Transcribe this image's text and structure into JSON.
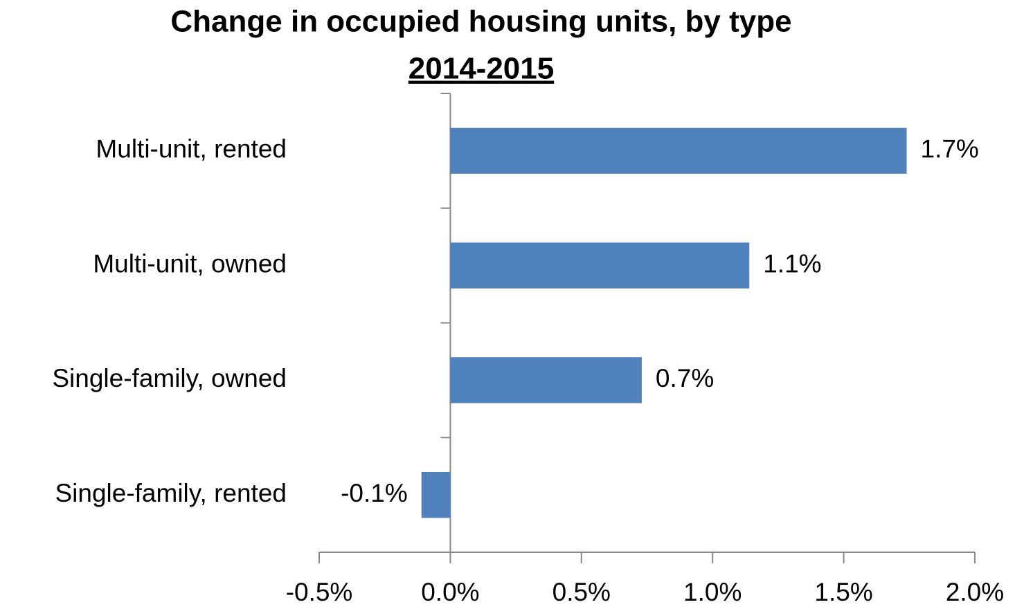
{
  "chart_data": {
    "type": "barh",
    "title": "Change in occupied housing units, by type",
    "subtitle": "2014-2015",
    "categories": [
      "Multi-unit, rented",
      "Multi-unit, owned",
      "Single-family, owned",
      "Single-family, rented"
    ],
    "values": [
      1.74,
      1.14,
      0.73,
      -0.11
    ],
    "value_labels": [
      "1.7%",
      "1.1%",
      "0.7%",
      "-0.1%"
    ],
    "color": "#4f81bd",
    "xlim": [
      -0.5,
      2.0
    ],
    "xticks": [
      {
        "value": -0.5,
        "label": "-0.5%"
      },
      {
        "value": 0,
        "label": "0.0%"
      },
      {
        "value": 0.5,
        "label": "0.5%"
      },
      {
        "value": 1.0,
        "label": "1.0%"
      },
      {
        "value": 1.5,
        "label": "1.5%"
      },
      {
        "value": 2.0,
        "label": "2.0%"
      }
    ],
    "grid": false
  }
}
